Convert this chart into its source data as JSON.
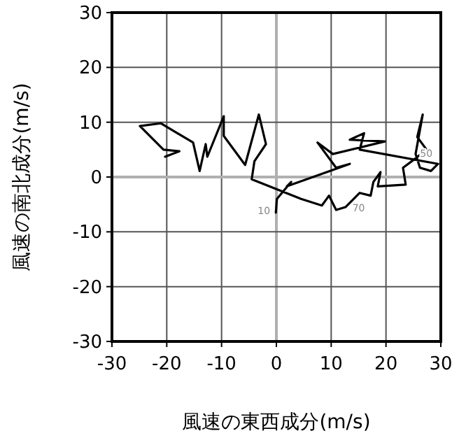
{
  "chart_data": {
    "type": "line",
    "xlabel": "風速の東西成分(m/s)",
    "ylabel": "風速の南北成分(m/s)",
    "xlim": [
      -30,
      30
    ],
    "ylim": [
      -30,
      30
    ],
    "xticks": [
      -30,
      -20,
      -10,
      0,
      10,
      20,
      30
    ],
    "yticks": [
      -30,
      -20,
      -10,
      0,
      10,
      20,
      30
    ],
    "grid": true,
    "series": [
      {
        "color": "#000000",
        "x": [
          -20.3,
          -17.7,
          -20.6,
          -24.9,
          -21.1,
          -15.2,
          -14.0,
          -12.9,
          -12.6,
          -9.6,
          -9.6,
          -5.7,
          -3.2,
          -1.9,
          -4.0,
          -4.5,
          4.5,
          8.3,
          9.6,
          10.9,
          12.6,
          15.2,
          17.2,
          17.7,
          19.0,
          18.5,
          23.6,
          23.1,
          25.4,
          27.4,
          25.7,
          26.7,
          25.4,
          26.2,
          28.2,
          29.5,
          15.2,
          16.0,
          13.4,
          19.8,
          10.3,
          7.5,
          10.9,
          13.4,
          1.9,
          2.7,
          0.1,
          -0.1
        ],
        "values": [
          3.7,
          4.7,
          5.0,
          9.3,
          9.8,
          6.3,
          1.1,
          6.0,
          3.7,
          11.1,
          7.5,
          2.2,
          11.4,
          6.0,
          2.9,
          -0.4,
          -4.0,
          -5.2,
          -3.4,
          -6.0,
          -5.5,
          -2.9,
          -3.4,
          -0.9,
          0.9,
          -1.7,
          -1.4,
          1.7,
          3.4,
          5.0,
          7.3,
          11.4,
          4.2,
          1.7,
          1.1,
          2.4,
          5.0,
          8.0,
          6.8,
          6.5,
          4.2,
          6.3,
          1.7,
          2.4,
          -1.7,
          -0.9,
          -4.0,
          -6.5
        ]
      }
    ],
    "annotations": [
      {
        "text": "10",
        "x": -0.1,
        "y": -6.5
      },
      {
        "text": "70",
        "x": 12.6,
        "y": -5.5
      },
      {
        "text": "50",
        "x": 29.5,
        "y": 2.4
      }
    ]
  }
}
